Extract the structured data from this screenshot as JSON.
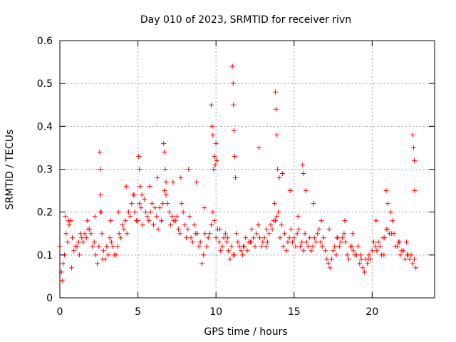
{
  "chart_data": {
    "type": "scatter",
    "title": "Day 010 of 2023, SRMTID for receiver rivn",
    "xlabel": "GPS time / hours",
    "ylabel": "SRMTID / TECUs",
    "xlim": [
      0,
      24
    ],
    "ylim": [
      0,
      0.6
    ],
    "xticks": [
      0,
      5,
      10,
      15,
      20
    ],
    "xtick_labels": [
      "0",
      "5",
      "10",
      "15",
      "20"
    ],
    "yticks": [
      0,
      0.1,
      0.2,
      0.3,
      0.4,
      0.5,
      0.6
    ],
    "ytick_labels": [
      "0",
      "0.1",
      "0.2",
      "0.3",
      "0.4",
      "0.5",
      "0.6"
    ],
    "grid": true,
    "marker": "+",
    "color": "#ff0000",
    "series": [
      {
        "name": "SRMTID",
        "x": [
          0.0,
          0.2,
          0.4,
          0.6,
          0.8,
          1.0,
          1.2,
          1.4,
          1.6,
          1.8,
          2.0,
          2.2,
          2.4,
          2.6,
          2.8,
          3.0,
          3.2,
          3.4,
          3.6,
          3.8,
          4.0,
          4.2,
          4.4,
          4.6,
          4.8,
          5.0,
          5.2,
          5.4,
          5.6,
          5.8,
          6.0,
          6.2,
          6.4,
          6.6,
          6.8,
          7.0,
          7.2,
          7.4,
          7.6,
          7.8,
          8.0,
          8.2,
          8.4,
          8.6,
          8.8,
          9.0,
          9.2,
          9.4,
          9.6,
          9.8,
          10.0,
          10.2,
          10.4,
          10.6,
          10.8,
          11.0,
          11.2,
          11.4,
          11.6,
          11.8,
          12.0,
          12.2,
          12.4,
          12.6,
          12.8,
          13.0,
          13.2,
          13.4,
          13.6,
          13.8,
          14.0,
          14.2,
          14.4,
          14.6,
          14.8,
          15.0,
          15.2,
          15.4,
          15.6,
          15.8,
          16.0,
          16.2,
          16.4,
          16.6,
          16.8,
          17.0,
          17.2,
          17.4,
          17.6,
          17.8,
          18.0,
          18.2,
          18.4,
          18.6,
          18.8,
          19.0,
          19.2,
          19.4,
          19.6,
          19.8,
          20.0,
          20.2,
          20.4,
          20.6,
          20.8,
          21.0,
          21.2,
          21.4,
          21.6,
          21.8,
          22.0,
          22.2,
          22.4,
          22.6,
          22.8,
          0.1,
          0.3,
          0.5,
          0.7,
          0.9,
          1.1,
          1.3,
          1.5,
          1.7,
          1.9,
          2.1,
          2.3,
          2.5,
          2.7,
          2.9,
          3.1,
          3.3,
          3.5,
          3.7,
          3.9,
          4.1,
          4.3,
          4.5,
          4.7,
          4.9,
          5.1,
          5.3,
          5.5,
          5.7,
          5.9,
          6.1,
          6.3,
          6.5,
          6.7,
          6.9,
          7.1,
          7.3,
          7.5,
          7.7,
          7.9,
          8.1,
          8.3,
          8.5,
          8.7,
          8.9,
          9.1,
          9.3,
          9.5,
          9.7,
          9.9,
          10.1,
          10.3,
          10.5,
          10.7,
          10.9,
          11.1,
          11.3,
          11.5,
          11.7,
          11.9,
          12.1,
          12.3,
          12.5,
          12.7,
          12.9,
          13.1,
          13.3,
          13.5,
          13.7,
          13.9,
          14.1,
          14.3,
          14.5,
          14.7,
          14.9,
          15.1,
          15.3,
          15.5,
          15.7,
          15.9,
          16.1,
          16.3,
          16.5,
          16.7,
          16.9,
          17.1,
          17.3,
          17.5,
          17.7,
          17.9,
          18.1,
          18.3,
          18.5,
          18.7,
          18.9,
          19.1,
          19.3,
          19.5,
          19.7,
          19.9,
          20.1,
          20.3,
          20.5,
          20.7,
          20.9,
          21.1,
          21.3,
          21.5,
          21.7,
          21.9,
          22.1,
          22.3,
          22.5,
          22.7,
          0.15,
          0.35,
          0.55,
          0.75,
          1.25,
          1.75,
          2.25,
          2.55,
          2.6,
          2.62,
          2.65,
          2.75,
          3.25,
          3.75,
          4.25,
          4.75,
          5.05,
          5.1,
          5.15,
          5.25,
          5.75,
          6.25,
          6.65,
          6.7,
          6.75,
          6.8,
          7.25,
          7.75,
          8.25,
          8.75,
          9.25,
          9.7,
          9.75,
          9.8,
          9.85,
          9.9,
          9.95,
          10.0,
          10.05,
          10.25,
          10.75,
          11.05,
          11.1,
          11.12,
          11.15,
          11.2,
          11.25,
          11.75,
          12.25,
          12.75,
          13.25,
          13.75,
          13.8,
          13.85,
          13.9,
          13.95,
          14.05,
          14.25,
          14.75,
          15.25,
          15.55,
          15.6,
          15.75,
          16.25,
          16.75,
          17.25,
          17.75,
          18.25,
          18.75,
          19.25,
          19.75,
          20.25,
          20.75,
          20.9,
          21.0,
          21.25,
          21.75,
          22.25,
          22.6,
          22.65,
          22.7,
          22.72
        ],
        "y": [
          0.12,
          0.08,
          0.15,
          0.17,
          0.14,
          0.12,
          0.13,
          0.14,
          0.15,
          0.16,
          0.15,
          0.13,
          0.08,
          0.2,
          0.11,
          0.12,
          0.14,
          0.12,
          0.1,
          0.15,
          0.17,
          0.18,
          0.2,
          0.22,
          0.2,
          0.18,
          0.21,
          0.23,
          0.19,
          0.2,
          0.17,
          0.19,
          0.21,
          0.22,
          0.24,
          0.2,
          0.19,
          0.18,
          0.16,
          0.22,
          0.17,
          0.16,
          0.14,
          0.17,
          0.15,
          0.13,
          0.1,
          0.12,
          0.15,
          0.2,
          0.14,
          0.13,
          0.12,
          0.15,
          0.11,
          0.12,
          0.1,
          0.13,
          0.11,
          0.12,
          0.11,
          0.13,
          0.14,
          0.15,
          0.14,
          0.13,
          0.12,
          0.15,
          0.16,
          0.18,
          0.2,
          0.17,
          0.15,
          0.13,
          0.16,
          0.14,
          0.15,
          0.12,
          0.11,
          0.13,
          0.14,
          0.12,
          0.13,
          0.16,
          0.12,
          0.11,
          0.08,
          0.09,
          0.12,
          0.14,
          0.13,
          0.15,
          0.1,
          0.12,
          0.11,
          0.1,
          0.08,
          0.07,
          0.09,
          0.1,
          0.11,
          0.12,
          0.13,
          0.1,
          0.14,
          0.16,
          0.2,
          0.15,
          0.12,
          0.1,
          0.11,
          0.13,
          0.09,
          0.08,
          0.07,
          0.06,
          0.1,
          0.13,
          0.18,
          0.11,
          0.12,
          0.15,
          0.13,
          0.14,
          0.16,
          0.12,
          0.1,
          0.12,
          0.15,
          0.09,
          0.1,
          0.13,
          0.1,
          0.12,
          0.14,
          0.16,
          0.15,
          0.19,
          0.24,
          0.18,
          0.22,
          0.17,
          0.2,
          0.18,
          0.22,
          0.21,
          0.16,
          0.18,
          0.25,
          0.22,
          0.17,
          0.18,
          0.19,
          0.15,
          0.2,
          0.14,
          0.19,
          0.13,
          0.15,
          0.12,
          0.08,
          0.15,
          0.14,
          0.17,
          0.18,
          0.16,
          0.11,
          0.14,
          0.13,
          0.09,
          0.1,
          0.15,
          0.12,
          0.1,
          0.14,
          0.13,
          0.16,
          0.12,
          0.17,
          0.12,
          0.14,
          0.13,
          0.17,
          0.18,
          0.19,
          0.14,
          0.12,
          0.11,
          0.14,
          0.13,
          0.12,
          0.16,
          0.13,
          0.15,
          0.12,
          0.11,
          0.14,
          0.15,
          0.13,
          0.14,
          0.09,
          0.07,
          0.11,
          0.1,
          0.12,
          0.14,
          0.13,
          0.09,
          0.12,
          0.1,
          0.12,
          0.09,
          0.06,
          0.08,
          0.09,
          0.13,
          0.11,
          0.12,
          0.14,
          0.16,
          0.15,
          0.18,
          0.12,
          0.13,
          0.11,
          0.09,
          0.1,
          0.1,
          0.09,
          0.04,
          0.19,
          0.18,
          0.07,
          0.1,
          0.18,
          0.19,
          0.34,
          0.3,
          0.24,
          0.2,
          0.09,
          0.18,
          0.2,
          0.26,
          0.24,
          0.33,
          0.3,
          0.26,
          0.24,
          0.26,
          0.28,
          0.36,
          0.34,
          0.3,
          0.27,
          0.27,
          0.28,
          0.3,
          0.27,
          0.21,
          0.45,
          0.4,
          0.38,
          0.3,
          0.33,
          0.31,
          0.36,
          0.32,
          0.16,
          0.14,
          0.54,
          0.5,
          0.45,
          0.39,
          0.33,
          0.28,
          0.12,
          0.13,
          0.35,
          0.16,
          0.22,
          0.48,
          0.44,
          0.38,
          0.3,
          0.28,
          0.29,
          0.25,
          0.19,
          0.31,
          0.29,
          0.25,
          0.22,
          0.18,
          0.16,
          0.14,
          0.18,
          0.15,
          0.1,
          0.09,
          0.18,
          0.1,
          0.25,
          0.22,
          0.15,
          0.13,
          0.1,
          0.38,
          0.35,
          0.32,
          0.25
        ]
      }
    ]
  }
}
